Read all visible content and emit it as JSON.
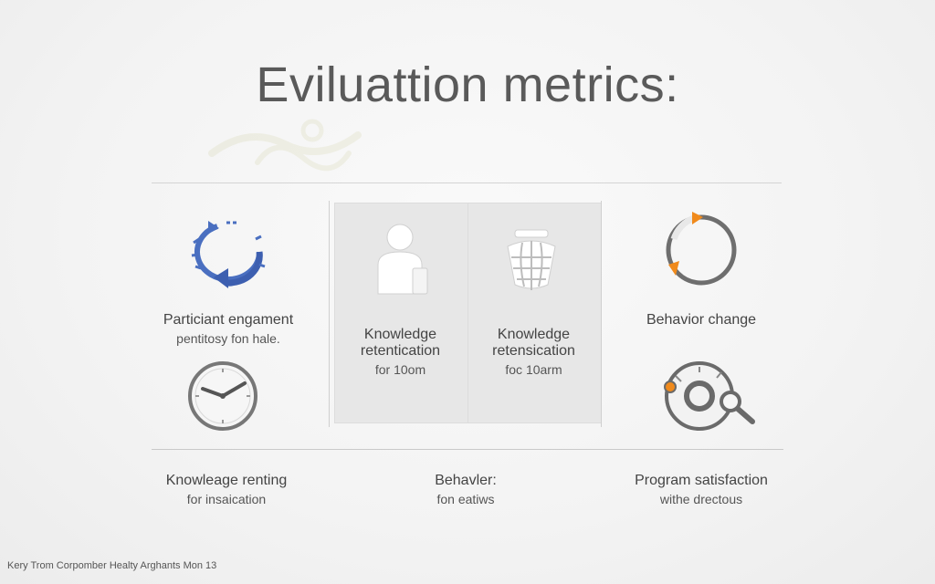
{
  "title": "Eviluattion metrics:",
  "cells": {
    "participant": {
      "label": "Particiant engament",
      "sub": "pentitosy fon hale."
    },
    "knowledge_left": {
      "label_1": "Knowledge",
      "label_2": "retentication",
      "sub": "for 10om"
    },
    "knowledge_right": {
      "label_1": "Knowledge",
      "label_2": "retensication",
      "sub": "foc 10arm"
    },
    "behavior_change": {
      "label": "Behavior change"
    },
    "knowledge_renting": {
      "label": "Knowleage renting",
      "sub": "for insaication"
    },
    "behavior": {
      "label": "Behavler:",
      "sub": "fon eatiws"
    },
    "program_satisfaction": {
      "label": "Program satisfaction",
      "sub": "withe drectous"
    }
  },
  "footer": "Kery Trom Corpomber Healty Arghants Mon 13",
  "colors": {
    "blue_arrows": "#4a6fc0",
    "orange_accent": "#f08a1c",
    "icon_gray": "#6a6a6a",
    "panel_bg": "#e7e7e7"
  },
  "icons": {
    "participant": "cycle-arrows-icon",
    "knowledge_left": "person-icon",
    "knowledge_right": "globe-basket-icon",
    "behavior_change": "circular-progress-icon",
    "knowledge_renting": "clock-icon",
    "program_satisfaction": "gauge-magnifier-icon"
  }
}
